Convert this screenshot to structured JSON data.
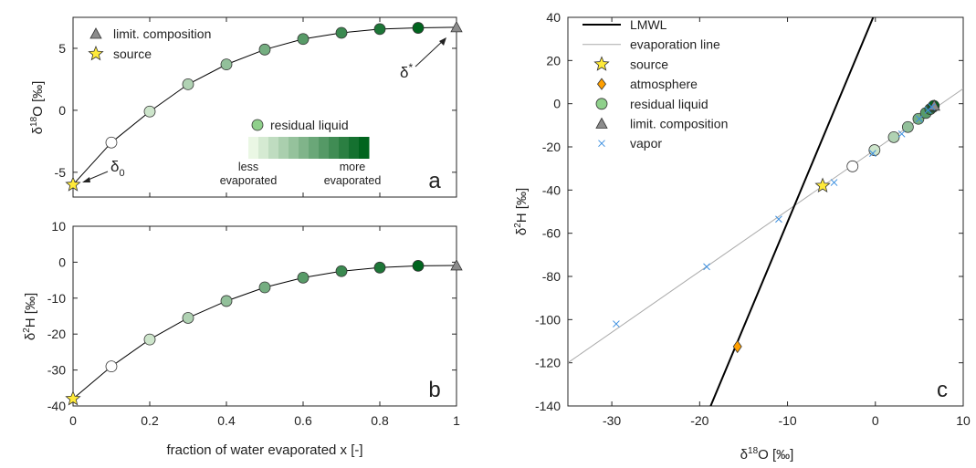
{
  "colors": {
    "star": "#ffea3a",
    "diamond": "#ff9f00",
    "triangle": "#8c8c8c",
    "vapor": "#3c8fe0",
    "lmwl": "#000000",
    "evap_line": "#aaaaaa",
    "curve": "#000000"
  },
  "chart_data": [
    {
      "id": "a",
      "type": "line",
      "panel_letter": "a",
      "xlim": [
        0,
        1
      ],
      "ylim": [
        -7,
        7.5
      ],
      "yticks": [
        -5,
        0,
        5
      ],
      "xticks": [
        0,
        0.2,
        0.4,
        0.6,
        0.8,
        1
      ],
      "ylabel_main": "δ",
      "ylabel_sup": "18",
      "ylabel_rest": "O [‰]",
      "curve": {
        "x": [
          0,
          0.1,
          0.2,
          0.3,
          0.4,
          0.5,
          0.6,
          0.7,
          0.8,
          0.9,
          1.0
        ],
        "y": [
          -6.0,
          -2.6,
          -0.1,
          2.1,
          3.7,
          4.9,
          5.75,
          6.25,
          6.55,
          6.65,
          6.7
        ]
      },
      "residual_points": {
        "x": [
          0.1,
          0.2,
          0.3,
          0.4,
          0.5,
          0.6,
          0.7,
          0.8,
          0.9
        ],
        "y": [
          -2.6,
          -0.1,
          2.1,
          3.7,
          4.9,
          5.75,
          6.25,
          6.55,
          6.65
        ]
      },
      "source_point": {
        "x": 0,
        "y": -6.0
      },
      "limit_point": {
        "x": 1.0,
        "y": 6.7
      },
      "legend": [
        {
          "marker": "triangle",
          "label": "limit. composition"
        },
        {
          "marker": "star",
          "label": "source"
        }
      ],
      "annotations": {
        "delta0_main": "δ",
        "delta0_sub": "0",
        "deltastar_main": "δ",
        "deltastar_sup": "*"
      },
      "colorbar": {
        "legend_label": "residual liquid",
        "left_label_line1": "less",
        "left_label_line2": "evaporated",
        "right_label_line1": "more",
        "right_label_line2": "evaporated"
      }
    },
    {
      "id": "b",
      "type": "line",
      "panel_letter": "b",
      "xlim": [
        0,
        1
      ],
      "ylim": [
        -40,
        10
      ],
      "yticks": [
        -40,
        -30,
        -20,
        -10,
        0,
        10
      ],
      "xticks": [
        0,
        0.2,
        0.4,
        0.6,
        0.8,
        1
      ],
      "xtick_labels": [
        "0",
        "0.2",
        "0.4",
        "0.6",
        "0.8",
        "1"
      ],
      "xlabel": "fraction of water evaporated x [-]",
      "ylabel_main": "δ",
      "ylabel_sup": "2",
      "ylabel_rest": "H [‰]",
      "curve": {
        "x": [
          0,
          0.1,
          0.2,
          0.3,
          0.4,
          0.5,
          0.6,
          0.7,
          0.8,
          0.9,
          1.0
        ],
        "y": [
          -38,
          -29,
          -21.5,
          -15.5,
          -10.8,
          -7,
          -4.3,
          -2.5,
          -1.5,
          -1.0,
          -0.9
        ]
      },
      "residual_points": {
        "x": [
          0.1,
          0.2,
          0.3,
          0.4,
          0.5,
          0.6,
          0.7,
          0.8,
          0.9
        ],
        "y": [
          -29,
          -21.5,
          -15.5,
          -10.8,
          -7,
          -4.3,
          -2.5,
          -1.5,
          -1.0
        ]
      },
      "source_point": {
        "x": 0,
        "y": -38
      },
      "limit_point": {
        "x": 1.0,
        "y": -0.9
      }
    },
    {
      "id": "c",
      "type": "scatter",
      "panel_letter": "c",
      "xlim": [
        -35,
        10
      ],
      "ylim": [
        -140,
        40
      ],
      "xticks": [
        -30,
        -20,
        -10,
        0,
        10
      ],
      "yticks": [
        -140,
        -120,
        -100,
        -80,
        -60,
        -40,
        -20,
        0,
        20,
        40
      ],
      "xlabel_main": "δ",
      "xlabel_sup": "18",
      "xlabel_rest": "O [‰]",
      "ylabel_main": "δ",
      "ylabel_sup": "2",
      "ylabel_rest": "H [‰]",
      "lmwl": {
        "x": [
          -18.75,
          -0.25
        ],
        "y": [
          -140,
          40
        ]
      },
      "evaporation_line": {
        "x": [
          -35,
          10
        ],
        "y": [
          -120,
          7
        ]
      },
      "source_point": {
        "x": -6.0,
        "y": -38
      },
      "atmosphere_point": {
        "x": -15.7,
        "y": -112.5
      },
      "limit_point": {
        "x": 6.7,
        "y": -0.9
      },
      "residual_points": {
        "x": [
          -2.6,
          -0.1,
          2.1,
          3.7,
          4.9,
          5.75,
          6.25,
          6.55,
          6.65
        ],
        "y": [
          -29,
          -21.5,
          -15.5,
          -10.8,
          -7,
          -4.3,
          -2.5,
          -1.5,
          -1.0
        ]
      },
      "vapor_points": {
        "x": [
          -29.5,
          -19.2,
          -11.0,
          -4.7,
          -0.3,
          3.0,
          5.0,
          6.0,
          6.4
        ],
        "y": [
          -102,
          -75.5,
          -53.5,
          -36.5,
          -23,
          -14,
          -7,
          -3,
          -1.5
        ]
      },
      "legend": [
        {
          "marker": "line-black",
          "label": "LMWL"
        },
        {
          "marker": "line-gray",
          "label": "evaporation line"
        },
        {
          "marker": "star",
          "label": "source"
        },
        {
          "marker": "diamond",
          "label": "atmosphere"
        },
        {
          "marker": "circle",
          "label": "residual liquid"
        },
        {
          "marker": "triangle",
          "label": "limit. composition"
        },
        {
          "marker": "cross",
          "label": "vapor"
        }
      ]
    }
  ]
}
